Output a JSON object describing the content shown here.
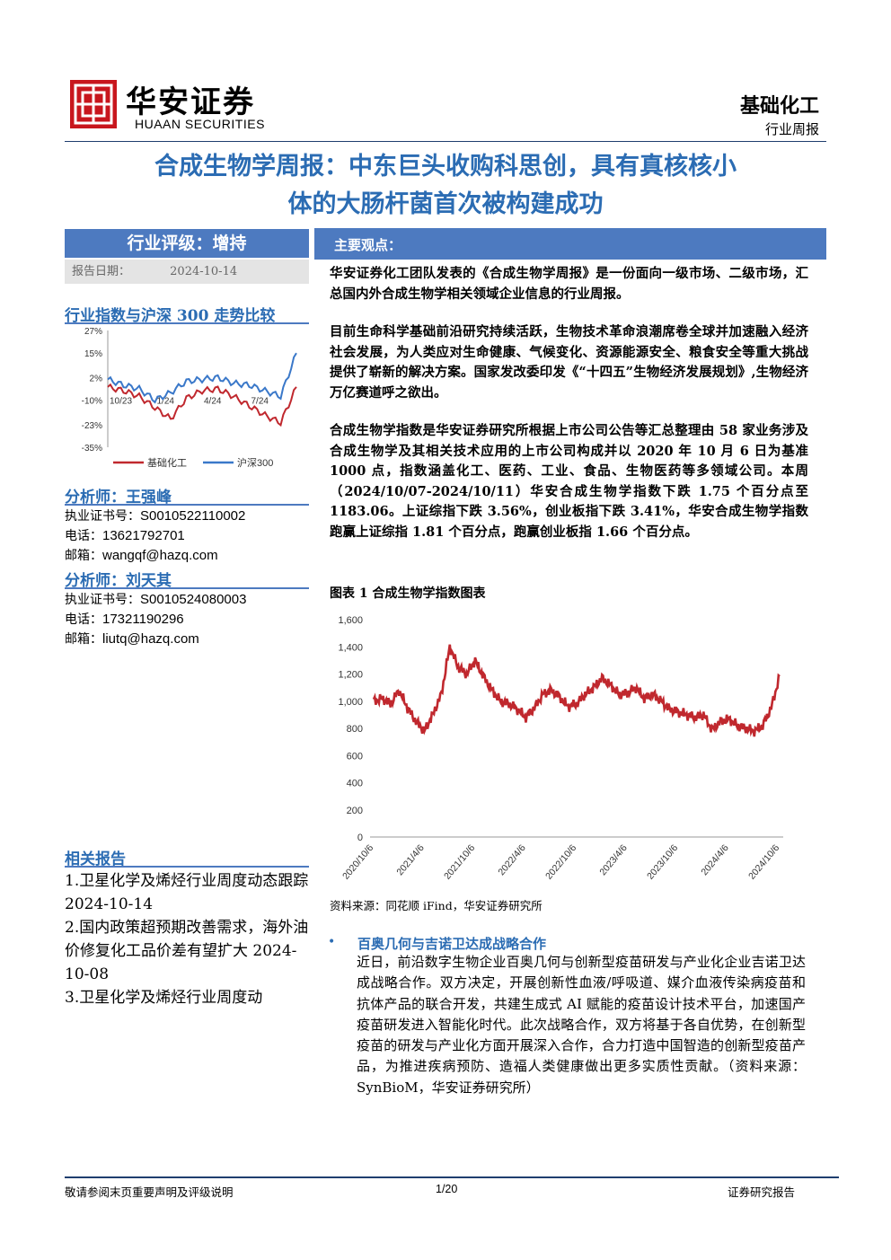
{
  "header": {
    "logo_cn": "华安证券",
    "logo_en": "HUAAN SECURITIES",
    "sector": "基础化工",
    "doc_type": "行业周报",
    "title_line1": "合成生物学周报：中东巨头收购科思创，具有真核核小",
    "title_line2": "体的大肠杆菌首次被构建成功"
  },
  "sidebar": {
    "rating": "行业评级：增持",
    "date_label": "报告日期：",
    "date_value": "2024-10-14",
    "index_compare_title": "行业指数与沪深 300 走势比较",
    "analyst1_title": "分析师：王强峰",
    "analyst1_cert_label": "执业证书号：",
    "analyst1_cert": "S0010522110002",
    "analyst1_phone_label": "电话：",
    "analyst1_phone": "13621792701",
    "analyst1_email_label": "邮箱：",
    "analyst1_email": "wangqf@hazq.com",
    "analyst2_title": "分析师：刘天其",
    "analyst2_cert_label": "执业证书号：",
    "analyst2_cert": "S0010524080003",
    "analyst2_phone_label": "电话：",
    "analyst2_phone": "17321190296",
    "analyst2_email_label": "邮箱：",
    "analyst2_email": "liutq@hazq.com",
    "related_title": "相关报告",
    "related": [
      "1.卫星化学及烯烃行业周度动态跟踪 2024-10-14",
      "2.国内政策超预期改善需求，海外油价修复化工品价差有望扩大 2024-10-08",
      "3.卫星化学及烯烃行业周度动"
    ]
  },
  "main": {
    "section_title": "主要观点：",
    "para1": "华安证券化工团队发表的《合成生物学周报》是一份面向一级市场、二级市场，汇总国内外合成生物学相关领域企业信息的行业周报。",
    "para2": "目前生命科学基础前沿研究持续活跃，生物技术革命浪潮席卷全球并加速融入经济社会发展，为人类应对生命健康、气候变化、资源能源安全、粮食安全等重大挑战提供了崭新的解决方案。国家发改委印发《“十四五”生物经济发展规划》,生物经济万亿赛道呼之欲出。",
    "para3": "合成生物学指数是华安证券研究所根据上市公司公告等汇总整理由 58 家业务涉及合成生物学及其相关技术应用的上市公司构成并以 2020 年 10 月 6 日为基准 1000 点，指数涵盖化工、医药、工业、食品、生物医药等多领域公司。本周（2024/10/07-2024/10/11）华安合成生物学指数下跌 1.75 个百分点至 1183.06。上证综指下跌 3.56%，创业板指下跌 3.41%，华安合成生物学指数跑赢上证综指 1.81 个百分点，跑赢创业板指 1.66 个百分点。",
    "figure_title": "图表 1 合成生物学指数图表",
    "figure_source": "资料来源：同花顺 iFind，华安证券研究所",
    "bullet_title": "百奥几何与吉诺卫达成战略合作",
    "bullet_body": "近日，前沿数字生物企业百奥几何与创新型疫苗研发与产业化企业吉诺卫达成战略合作。双方决定，开展创新性血液/呼吸道、媒介血液传染病疫苗和抗体产品的联合开发，共建生成式 AI 赋能的疫苗设计技术平台，加速国产疫苗研发进入智能化时代。此次战略合作，双方将基于各自优势，在创新型疫苗的研发与产业化方面开展深入合作，合力打造中国智造的创新型疫苗产品，为推进疾病预防、造福人类健康做出更多实质性贡献。（资料来源：SynBioM，华安证券研究所）"
  },
  "footer": {
    "disclaimer": "敬请参阅末页重要声明及评级说明",
    "page": "1/20",
    "label": "证券研究报告"
  },
  "colors": {
    "accent_blue": "#4d7ac0",
    "title_blue": "#2b6cb3",
    "logo_red": "#c8161d",
    "series_red": "#c0282e",
    "series_blue": "#3a78c9"
  },
  "chart_data": [
    {
      "type": "line",
      "title": "行业指数与沪深 300 走势比较",
      "x_ticks": [
        "10/23",
        "1/24",
        "4/24",
        "7/24"
      ],
      "y_ticks": [
        "27%",
        "15%",
        "2%",
        "-10%",
        "-23%",
        "-35%"
      ],
      "ylim": [
        -35,
        27
      ],
      "x": [
        "10/23",
        "11/23",
        "12/23",
        "1/24",
        "2/24",
        "3/24",
        "4/24",
        "5/24",
        "6/24",
        "7/24",
        "8/24",
        "9/24",
        "10/24"
      ],
      "series": [
        {
          "name": "基础化工",
          "color": "#c0282e",
          "values": [
            -3,
            -5,
            -8,
            -14,
            -20,
            -9,
            -5,
            -4,
            -8,
            -13,
            -18,
            -22,
            -3
          ]
        },
        {
          "name": "沪深300",
          "color": "#3a78c9",
          "values": [
            1,
            -2,
            -4,
            -10,
            -6,
            0,
            1,
            2,
            -1,
            -2,
            -5,
            -8,
            15
          ]
        }
      ],
      "legend": "bottom"
    },
    {
      "type": "line",
      "title": "图表 1 合成生物学指数图表",
      "x_ticks": [
        "2020/10/6",
        "2021/4/6",
        "2021/10/6",
        "2022/4/6",
        "2022/10/6",
        "2023/4/6",
        "2023/10/6",
        "2024/4/6",
        "2024/10/6"
      ],
      "ylim": [
        0,
        1600
      ],
      "y_ticks": [
        "0",
        "200",
        "400",
        "600",
        "800",
        "1,000",
        "1,200",
        "1,400",
        "1,600"
      ],
      "x": [
        "2020/10",
        "2020/11",
        "2020/12",
        "2021/1",
        "2021/2",
        "2021/3",
        "2021/4",
        "2021/5",
        "2021/6",
        "2021/7",
        "2021/8",
        "2021/9",
        "2021/10",
        "2021/11",
        "2021/12",
        "2022/1",
        "2022/2",
        "2022/3",
        "2022/4",
        "2022/5",
        "2022/6",
        "2022/7",
        "2022/8",
        "2022/9",
        "2022/10",
        "2022/11",
        "2022/12",
        "2023/1",
        "2023/2",
        "2023/3",
        "2023/4",
        "2023/5",
        "2023/6",
        "2023/7",
        "2023/8",
        "2023/9",
        "2023/10",
        "2023/11",
        "2023/12",
        "2024/1",
        "2024/2",
        "2024/3",
        "2024/4",
        "2024/5",
        "2024/6",
        "2024/7",
        "2024/8",
        "2024/9",
        "2024/10"
      ],
      "series": [
        {
          "name": "合成生物学指数",
          "color": "#c0282e",
          "values": [
            1000,
            1020,
            980,
            1080,
            950,
            850,
            780,
            900,
            1050,
            1400,
            1250,
            1200,
            1300,
            1180,
            1080,
            1000,
            980,
            940,
            880,
            950,
            1050,
            1080,
            1030,
            960,
            980,
            1050,
            1100,
            1170,
            1120,
            1050,
            1060,
            1100,
            1020,
            1050,
            1000,
            940,
            920,
            900,
            880,
            900,
            790,
            850,
            870,
            820,
            800,
            780,
            820,
            950,
            1183.06
          ]
        }
      ]
    }
  ]
}
